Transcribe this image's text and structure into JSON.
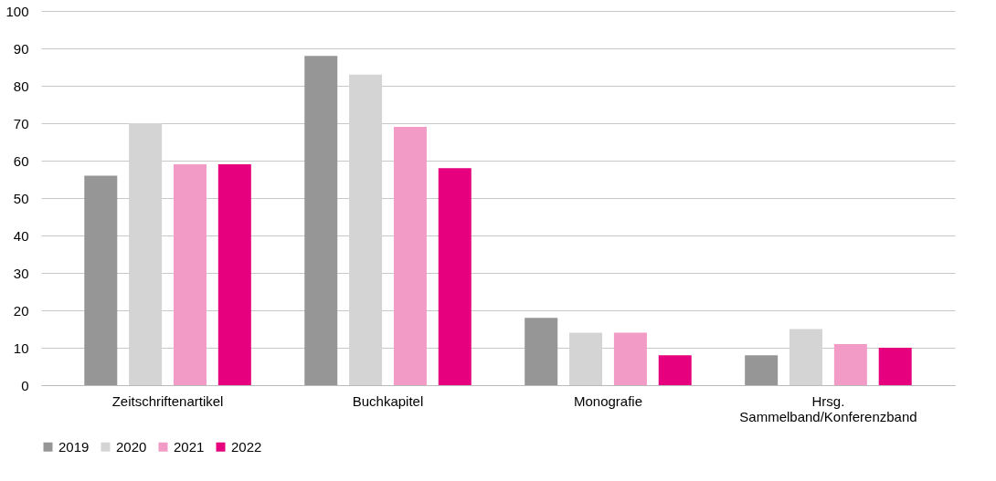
{
  "chart_data": {
    "type": "bar",
    "categories": [
      "Zeitschriftenartikel",
      "Buchkapitel",
      "Monografie",
      "Hrsg.\nSammelband/Konferenzband"
    ],
    "series": [
      {
        "name": "2019",
        "color": "#969696",
        "values": [
          56,
          88,
          18,
          8
        ]
      },
      {
        "name": "2020",
        "color": "#d4d4d4",
        "values": [
          70,
          83,
          14,
          15
        ]
      },
      {
        "name": "2021",
        "color": "#f29bc6",
        "values": [
          59,
          69,
          14,
          11
        ]
      },
      {
        "name": "2022",
        "color": "#e6007e",
        "values": [
          59,
          58,
          8,
          10
        ]
      }
    ],
    "ylim": [
      0,
      100
    ],
    "yticks": [
      0,
      10,
      20,
      30,
      40,
      50,
      60,
      70,
      80,
      90,
      100
    ],
    "grid": "y",
    "legend": "bottom"
  }
}
